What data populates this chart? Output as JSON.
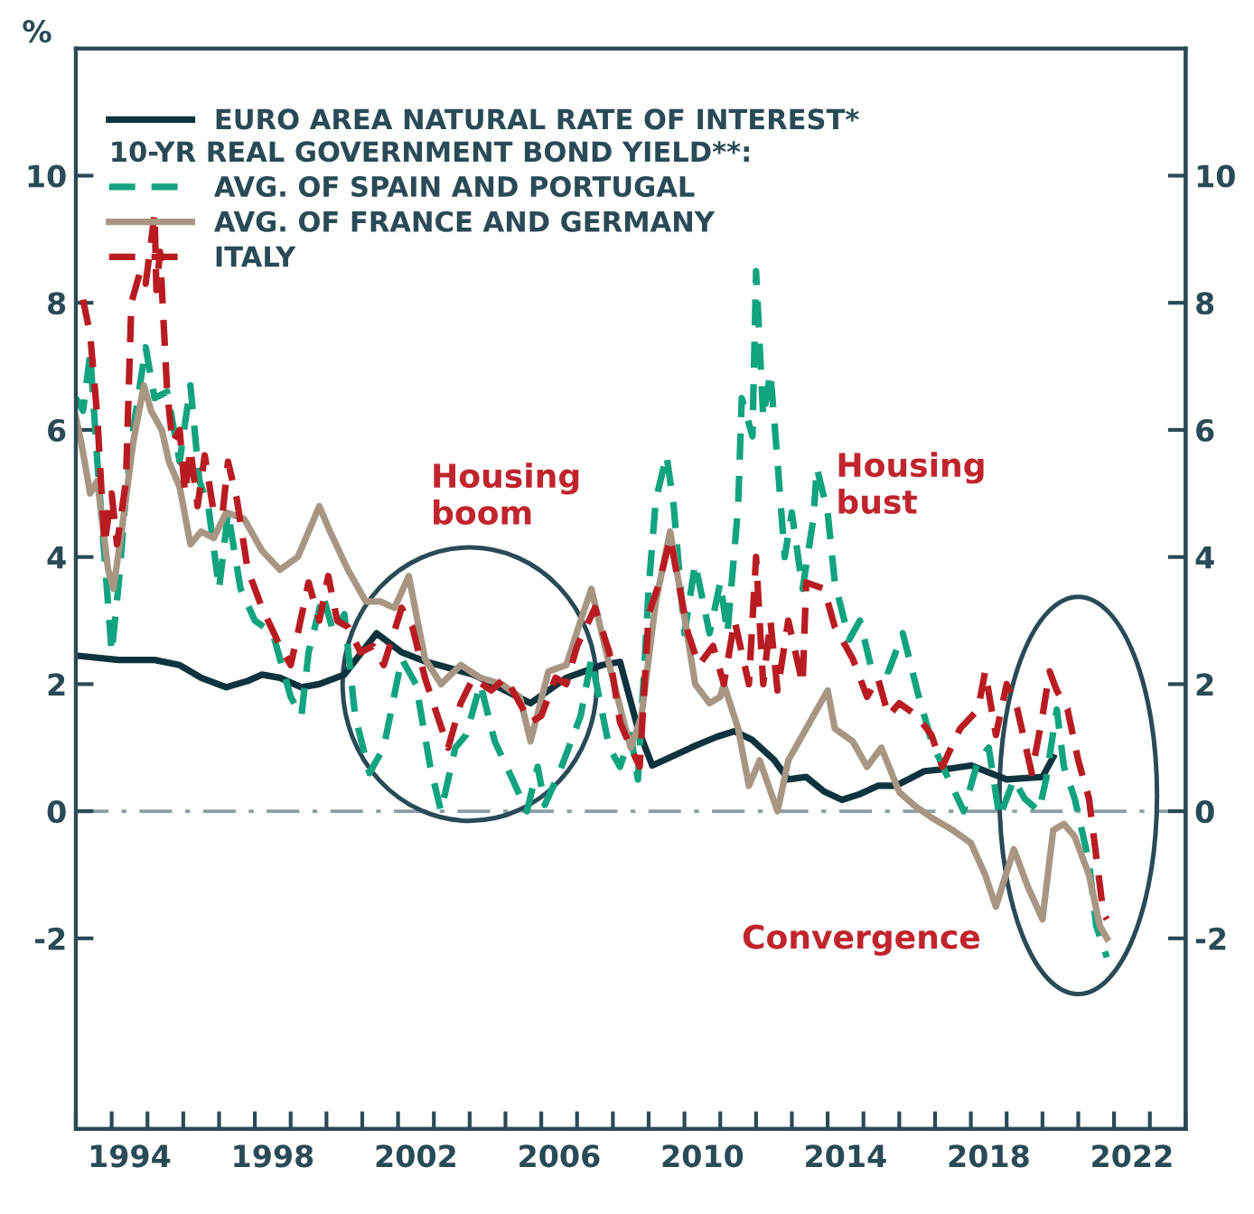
{
  "chart_data": {
    "type": "line",
    "ylabel": "%",
    "legend": "top left",
    "legend_title": "10-YR REAL GOVERNMENT BOND YIELD**:",
    "xlim": [
      1993,
      2024
    ],
    "xticks": [
      {
        "value": 1993,
        "label": null
      },
      {
        "value": 1994,
        "label": null
      },
      {
        "value": 1994.5,
        "label": "1994"
      },
      {
        "value": 1995,
        "label": null
      },
      {
        "value": 1996,
        "label": null
      },
      {
        "value": 1997,
        "label": null
      },
      {
        "value": 1998,
        "label": null
      },
      {
        "value": 1998.5,
        "label": "1998"
      },
      {
        "value": 1999,
        "label": null
      },
      {
        "value": 2000,
        "label": null
      },
      {
        "value": 2001,
        "label": null
      },
      {
        "value": 2002,
        "label": null
      },
      {
        "value": 2002.5,
        "label": "2002"
      },
      {
        "value": 2003,
        "label": null
      },
      {
        "value": 2004,
        "label": null
      },
      {
        "value": 2005,
        "label": null
      },
      {
        "value": 2006,
        "label": null
      },
      {
        "value": 2006.5,
        "label": "2006"
      },
      {
        "value": 2007,
        "label": null
      },
      {
        "value": 2008,
        "label": null
      },
      {
        "value": 2009,
        "label": null
      },
      {
        "value": 2010,
        "label": null
      },
      {
        "value": 2010.5,
        "label": "2010"
      },
      {
        "value": 2011,
        "label": null
      },
      {
        "value": 2012,
        "label": null
      },
      {
        "value": 2013,
        "label": null
      },
      {
        "value": 2014,
        "label": null
      },
      {
        "value": 2014.5,
        "label": "2014"
      },
      {
        "value": 2015,
        "label": null
      },
      {
        "value": 2016,
        "label": null
      },
      {
        "value": 2017,
        "label": null
      },
      {
        "value": 2018,
        "label": null
      },
      {
        "value": 2018.5,
        "label": "2018"
      },
      {
        "value": 2019,
        "label": null
      },
      {
        "value": 2020,
        "label": null
      },
      {
        "value": 2021,
        "label": null
      },
      {
        "value": 2022,
        "label": null
      },
      {
        "value": 2022.5,
        "label": "2022"
      },
      {
        "value": 2023,
        "label": null
      },
      {
        "value": 2024,
        "label": null
      }
    ],
    "ylim": [
      -5,
      12
    ],
    "yticks": [
      -2,
      0,
      2,
      4,
      6,
      8,
      10
    ],
    "y2lim": [
      -5,
      12
    ],
    "y2ticks": [
      -2,
      0,
      2,
      4,
      6,
      8,
      10
    ],
    "grid": false,
    "ref_lines": [
      {
        "axis": "y",
        "value": 0,
        "label": null,
        "color": "#8a9ea4",
        "line_style": "dashdot"
      }
    ],
    "annotations": [
      "Housing\nboom",
      "Housing\nbust",
      "Convergence"
    ],
    "series": [
      {
        "name": "EURO AREA NATURAL RATE OF INTEREST*",
        "color": "#0f333c",
        "line_style": "solid",
        "x": [
          1993.0,
          1994.2,
          1995.2,
          1995.9,
          1996.5,
          1997.2,
          1997.8,
          1998.2,
          1998.7,
          1999.3,
          1999.8,
          2000.5,
          2001.4,
          2002.1,
          2002.8,
          2004.1,
          2005.7,
          2006.7,
          2007.7,
          2008.2,
          2008.7,
          2009.1,
          2010.3,
          2010.9,
          2011.4,
          2011.9,
          2012.5,
          2012.9,
          2013.4,
          2013.9,
          2014.4,
          2014.9,
          2015.4,
          2015.9,
          2016.7,
          2017.4,
          2018.0,
          2019.0,
          2020.0,
          2020.3
        ],
        "values": [
          2.45,
          2.38,
          2.38,
          2.3,
          2.1,
          1.95,
          2.05,
          2.15,
          2.1,
          1.95,
          2.0,
          2.15,
          2.8,
          2.5,
          2.35,
          2.15,
          1.7,
          2.1,
          2.3,
          2.35,
          1.3,
          0.72,
          1.03,
          1.17,
          1.26,
          1.12,
          0.81,
          0.5,
          0.54,
          0.31,
          0.18,
          0.27,
          0.4,
          0.4,
          0.63,
          0.67,
          0.72,
          0.5,
          0.54,
          0.85
        ]
      },
      {
        "name": "AVG. OF SPAIN AND PORTUGAL",
        "color": "#12a37f",
        "line_style": "dashed",
        "x": [
          1993.0,
          1993.2,
          1993.4,
          1993.6,
          1993.8,
          1994.0,
          1994.2,
          1994.4,
          1994.6,
          1994.95,
          1995.2,
          1995.55,
          1995.9,
          1996.2,
          1996.45,
          1996.7,
          1997.0,
          1997.25,
          1997.6,
          1998.0,
          1998.5,
          1999.0,
          1999.3,
          1999.5,
          1999.9,
          2000.2,
          2000.5,
          2000.8,
          2001.2,
          2001.6,
          2002.1,
          2002.5,
          2002.9,
          2003.2,
          2003.6,
          2003.9,
          2004.3,
          2004.7,
          2005.2,
          2005.6,
          2005.9,
          2006.1,
          2006.5,
          2007.1,
          2007.4,
          2007.9,
          2008.2,
          2008.5,
          2008.7,
          2009.0,
          2009.2,
          2009.5,
          2009.7,
          2010.0,
          2010.3,
          2010.7,
          2011.0,
          2011.2,
          2011.5,
          2011.6,
          2011.9,
          2012.0,
          2012.2,
          2012.4,
          2012.6,
          2012.8,
          2013.0,
          2013.3,
          2013.6,
          2013.7,
          2014.0,
          2014.2,
          2014.6,
          2014.9,
          2015.2,
          2015.7,
          2016.1,
          2016.5,
          2016.9,
          2017.3,
          2017.8,
          2018.2,
          2018.5,
          2018.8,
          2019.2,
          2019.5,
          2019.9,
          2020.1,
          2020.4,
          2020.6,
          2020.9,
          2021.3,
          2021.5,
          2021.8
        ],
        "values": [
          6.5,
          6.3,
          7.2,
          5.5,
          4.0,
          2.5,
          3.6,
          5.0,
          6.0,
          7.3,
          6.5,
          6.6,
          5.5,
          6.7,
          5.2,
          4.8,
          3.5,
          4.7,
          3.5,
          3.0,
          2.8,
          1.8,
          1.5,
          2.5,
          3.4,
          2.8,
          3.1,
          1.5,
          0.6,
          1.0,
          2.4,
          2.0,
          0.7,
          0.0,
          1.0,
          1.2,
          2.0,
          1.1,
          0.5,
          0.0,
          0.7,
          0.1,
          0.6,
          1.5,
          2.4,
          1.0,
          0.7,
          1.2,
          0.5,
          3.5,
          4.9,
          5.6,
          4.8,
          2.8,
          3.9,
          2.8,
          3.6,
          2.8,
          4.8,
          6.5,
          5.9,
          8.5,
          6.2,
          6.9,
          5.5,
          4.0,
          4.7,
          3.5,
          4.6,
          5.4,
          4.7,
          3.6,
          2.7,
          3.0,
          2.3,
          2.2,
          2.8,
          1.9,
          1.1,
          0.6,
          0.0,
          0.8,
          1.0,
          -0.1,
          0.5,
          0.2,
          0.0,
          0.5,
          1.6,
          0.7,
          0.2,
          -0.8,
          -1.8,
          -2.3
        ]
      },
      {
        "name": "AVG. OF FRANCE AND GERMANY",
        "color": "#a89684",
        "line_style": "solid",
        "x": [
          1993.0,
          1993.15,
          1993.4,
          1993.6,
          1993.9,
          1994.05,
          1994.3,
          1994.6,
          1994.9,
          1995.1,
          1995.4,
          1995.6,
          1995.9,
          1996.2,
          1996.5,
          1996.85,
          1997.2,
          1997.7,
          1998.2,
          1998.7,
          1999.2,
          1999.5,
          1999.8,
          2000.1,
          2000.6,
          2001.1,
          2001.5,
          2001.9,
          2002.3,
          2002.75,
          2003.2,
          2003.75,
          2004.3,
          2004.9,
          2005.4,
          2005.7,
          2006.2,
          2006.7,
          2007.1,
          2007.4,
          2007.9,
          2008.4,
          2008.5,
          2008.8,
          2009.2,
          2009.6,
          2009.9,
          2010.3,
          2010.7,
          2011.0,
          2011.1,
          2011.5,
          2011.8,
          2012.1,
          2012.6,
          2012.9,
          2013.3,
          2013.7,
          2014.0,
          2014.2,
          2014.7,
          2015.1,
          2015.5,
          2016.0,
          2016.4,
          2016.9,
          2017.5,
          2018.0,
          2018.4,
          2018.7,
          2019.2,
          2019.6,
          2020.0,
          2020.3,
          2020.6,
          2020.9,
          2021.3,
          2021.6,
          2021.8
        ],
        "values": [
          6.2,
          5.8,
          5.0,
          5.2,
          3.8,
          3.5,
          4.5,
          5.8,
          6.7,
          6.3,
          6.0,
          5.5,
          5.1,
          4.2,
          4.4,
          4.3,
          4.7,
          4.6,
          4.1,
          3.8,
          4.0,
          4.4,
          4.8,
          4.4,
          3.8,
          3.3,
          3.3,
          3.2,
          3.7,
          2.4,
          2.0,
          2.3,
          2.1,
          2.0,
          1.8,
          1.1,
          2.2,
          2.3,
          3.0,
          3.5,
          2.3,
          1.2,
          1.0,
          1.5,
          3.3,
          4.4,
          3.4,
          2.0,
          1.7,
          1.8,
          2.0,
          1.3,
          0.4,
          0.8,
          0.0,
          0.8,
          1.2,
          1.6,
          1.9,
          1.3,
          1.1,
          0.7,
          1.0,
          0.3,
          0.1,
          -0.1,
          -0.3,
          -0.5,
          -1.0,
          -1.5,
          -0.6,
          -1.2,
          -1.7,
          -0.3,
          -0.2,
          -0.4,
          -1.0,
          -1.8,
          -2.0
        ]
      },
      {
        "name": "ITALY",
        "color": "#b81c22",
        "line_style": "dashed",
        "x": [
          1993.2,
          1993.4,
          1993.6,
          1993.8,
          1994.0,
          1994.15,
          1994.4,
          1994.55,
          1994.8,
          1994.95,
          1995.2,
          1995.25,
          1995.35,
          1995.55,
          1995.7,
          1995.9,
          1996.05,
          1996.2,
          1996.4,
          1996.6,
          1996.85,
          1997.1,
          1997.25,
          1997.5,
          1997.8,
          1998.2,
          1998.7,
          1999.0,
          1999.2,
          1999.5,
          1999.8,
          2000.05,
          2000.3,
          2000.6,
          2000.95,
          2001.3,
          2001.6,
          2002.1,
          2002.4,
          2002.75,
          2003.1,
          2003.4,
          2003.75,
          2004.1,
          2004.6,
          2005.0,
          2005.4,
          2005.7,
          2006.0,
          2006.4,
          2006.7,
          2007.0,
          2007.5,
          2007.9,
          2008.2,
          2008.5,
          2008.75,
          2009.0,
          2009.3,
          2009.6,
          2009.8,
          2010.1,
          2010.4,
          2010.8,
          2011.1,
          2011.4,
          2011.8,
          2012.0,
          2012.2,
          2012.4,
          2012.6,
          2012.9,
          2013.3,
          2013.4,
          2013.9,
          2014.2,
          2014.7,
          2015.1,
          2015.4,
          2015.7,
          2016.0,
          2016.5,
          2016.9,
          2017.2,
          2017.7,
          2018.2,
          2018.4,
          2018.7,
          2019.0,
          2019.3,
          2019.7,
          2020.0,
          2020.2,
          2020.4,
          2020.7,
          2021.0,
          2021.3,
          2021.5,
          2021.7,
          2021.8
        ],
        "values": [
          8.05,
          7.5,
          6.2,
          4.2,
          5.0,
          4.2,
          5.2,
          8.0,
          8.5,
          8.3,
          9.4,
          8.2,
          8.8,
          6.6,
          5.8,
          6.0,
          5.0,
          5.7,
          4.8,
          5.6,
          4.7,
          4.7,
          5.5,
          4.9,
          3.8,
          3.2,
          2.6,
          2.3,
          2.8,
          3.6,
          3.0,
          3.7,
          3.0,
          2.9,
          2.5,
          2.6,
          2.3,
          3.2,
          2.9,
          2.1,
          1.5,
          1.0,
          1.7,
          2.1,
          1.9,
          2.1,
          1.7,
          1.4,
          1.5,
          2.1,
          2.0,
          2.6,
          3.2,
          2.5,
          1.4,
          1.0,
          0.7,
          3.1,
          3.6,
          4.3,
          3.7,
          2.8,
          2.3,
          2.6,
          2.0,
          3.0,
          2.0,
          4.0,
          2.0,
          3.0,
          1.9,
          3.0,
          2.0,
          3.6,
          3.5,
          2.9,
          2.4,
          1.8,
          2.1,
          1.5,
          1.7,
          1.5,
          1.2,
          0.7,
          1.3,
          1.6,
          2.2,
          1.2,
          2.0,
          1.6,
          0.6,
          1.5,
          2.2,
          1.9,
          1.6,
          0.8,
          0.2,
          -0.7,
          -1.6,
          -1.7
        ]
      }
    ]
  }
}
